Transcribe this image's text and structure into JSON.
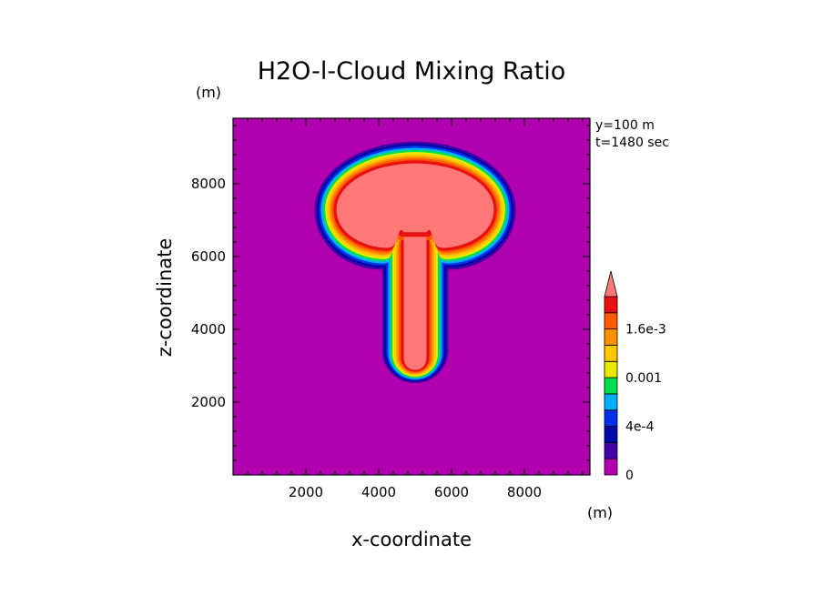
{
  "chart_data": {
    "type": "heatmap",
    "title": "H2O-l-Cloud Mixing Ratio",
    "xlabel": "x-coordinate",
    "ylabel": "z-coordinate",
    "x_unit": "(m)",
    "y_unit": "(m)",
    "annotations": [
      "y=100 m",
      "t=1480 sec"
    ],
    "xlim": [
      0,
      9800
    ],
    "ylim": [
      0,
      9800
    ],
    "x_ticks": [
      2000,
      4000,
      6000,
      8000
    ],
    "y_ticks": [
      2000,
      4000,
      6000,
      8000
    ],
    "x_tick_labels": [
      "2000",
      "4000",
      "6000",
      "8000"
    ],
    "y_tick_labels": [
      "2000",
      "4000",
      "6000",
      "8000"
    ],
    "minor_tick_step": 400,
    "grid": false,
    "colorbar": {
      "orientation": "vertical",
      "extend": "max",
      "levels": [
        0,
        0.0002,
        0.0003,
        0.0004,
        0.0006,
        0.0008,
        0.001,
        0.0012,
        0.0014,
        0.0016,
        0.0018,
        0.002
      ],
      "tick_values": [
        0,
        0.0004,
        0.001,
        0.0016
      ],
      "tick_labels": [
        "0",
        "4e-4",
        "0.001",
        "1.6e-3"
      ],
      "colors": [
        "#b000b0",
        "#4400a8",
        "#0008a8",
        "#0030e8",
        "#00b0ff",
        "#00e050",
        "#e8e800",
        "#ffc800",
        "#ff9000",
        "#ff5a00",
        "#e81010"
      ],
      "extend_color": "#ff7878"
    },
    "field": {
      "description_free": true,
      "background_value": 0,
      "cap_center": [
        5000,
        7300
      ],
      "cap_semi_axes": [
        2300,
        1400
      ],
      "cap_bottom_z": 6100,
      "stem_center_x": 5000,
      "stem_half_width": 450,
      "stem_bottom_z": 2800,
      "core_value": 0.0022
    }
  }
}
